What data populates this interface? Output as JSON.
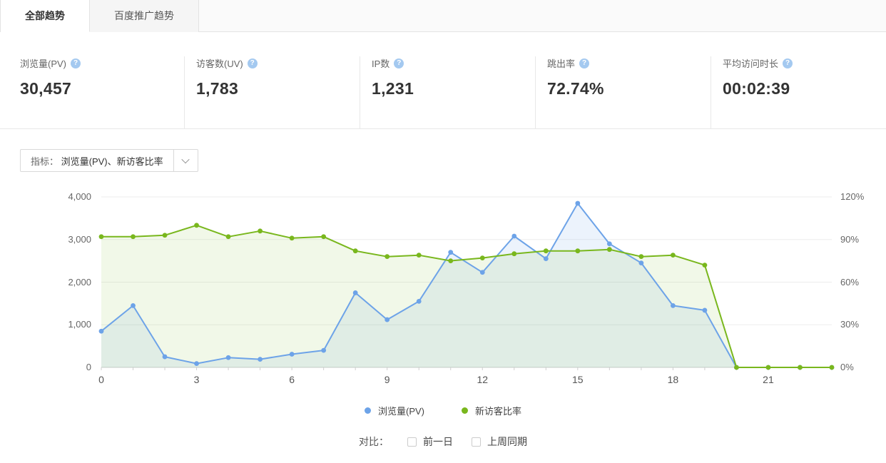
{
  "tabs": [
    {
      "label": "全部趋势",
      "active": true
    },
    {
      "label": "百度推广趋势",
      "active": false
    }
  ],
  "stats": [
    {
      "label": "浏览量(PV)",
      "value": "30,457"
    },
    {
      "label": "访客数(UV)",
      "value": "1,783"
    },
    {
      "label": "IP数",
      "value": "1,231"
    },
    {
      "label": "跳出率",
      "value": "72.74%"
    },
    {
      "label": "平均访问时长",
      "value": "00:02:39"
    }
  ],
  "icons": {
    "help": "?"
  },
  "metric_selector": {
    "label": "指标：",
    "value": "浏览量(PV)、新访客比率"
  },
  "chart_data": {
    "type": "line",
    "title": "",
    "x": [
      0,
      1,
      2,
      3,
      4,
      5,
      6,
      7,
      8,
      9,
      10,
      11,
      12,
      13,
      14,
      15,
      16,
      17,
      18,
      19,
      20,
      21,
      22,
      23
    ],
    "x_tick_labels": [
      "0",
      "3",
      "6",
      "9",
      "12",
      "15",
      "18",
      "21"
    ],
    "left_axis": {
      "ticks": [
        "4,000",
        "3,000",
        "2,000",
        "1,000",
        "0"
      ],
      "range": [
        0,
        4000
      ]
    },
    "right_axis": {
      "ticks": [
        "120%",
        "90%",
        "60%",
        "30%",
        "0%"
      ],
      "range": [
        0,
        120
      ]
    },
    "grid": true,
    "legend_position": "bottom",
    "series": [
      {
        "name": "浏览量(PV)",
        "yaxis": "left",
        "color": "#6da3e8",
        "fill": "rgba(109,163,232,0.13)",
        "values": [
          850,
          1450,
          250,
          90,
          230,
          190,
          310,
          400,
          1750,
          1120,
          1550,
          2700,
          2230,
          3080,
          2550,
          3850,
          2900,
          2450,
          1450,
          1340,
          0,
          0,
          0,
          0
        ]
      },
      {
        "name": "新访客比率",
        "yaxis": "right",
        "color": "#79b71d",
        "fill": "rgba(121,183,29,0.10)",
        "values": [
          92,
          92,
          93,
          100,
          92,
          96,
          91,
          92,
          82,
          78,
          79,
          75,
          77,
          80,
          82,
          82,
          83,
          78,
          79,
          72,
          0,
          0,
          0,
          0
        ]
      }
    ]
  },
  "legend": {
    "items": [
      {
        "label": "浏览量(PV)",
        "color": "#6da3e8"
      },
      {
        "label": "新访客比率",
        "color": "#79b71d"
      }
    ]
  },
  "compare": {
    "label": "对比：",
    "options": [
      {
        "label": "前一日",
        "checked": false
      },
      {
        "label": "上周同期",
        "checked": false
      }
    ]
  }
}
